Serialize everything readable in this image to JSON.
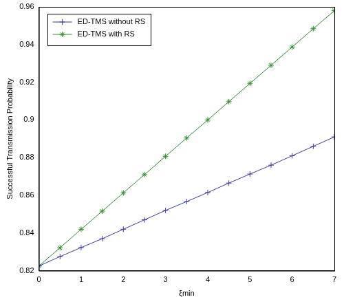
{
  "chart_data": {
    "type": "line",
    "x_label": "ξmin",
    "y_label": "Successful Transmission Probability",
    "x": [
      0,
      0.5,
      1,
      1.5,
      2,
      2.5,
      3,
      3.5,
      4,
      4.5,
      5,
      5.5,
      6,
      6.5,
      7
    ],
    "series": [
      {
        "name": "ED-TMS without RS",
        "color": "#3c3c9c",
        "marker": "plus",
        "values": [
          0.8225,
          0.8275,
          0.8323,
          0.837,
          0.842,
          0.847,
          0.852,
          0.8567,
          0.8615,
          0.8665,
          0.8713,
          0.876,
          0.881,
          0.886,
          0.891
        ]
      },
      {
        "name": "ED-TMS with RS",
        "color": "#2e8b2e",
        "marker": "star",
        "values": [
          0.8225,
          0.8322,
          0.842,
          0.8516,
          0.8613,
          0.871,
          0.8807,
          0.8904,
          0.9,
          0.9097,
          0.9194,
          0.929,
          0.9387,
          0.9484,
          0.958
        ]
      }
    ],
    "xlim": [
      0,
      7
    ],
    "xticks": [
      0,
      1,
      2,
      3,
      4,
      5,
      6,
      7
    ],
    "ylim": [
      0.82,
      0.96
    ],
    "yticks": [
      0.82,
      0.84,
      0.86,
      0.88,
      0.9,
      0.92,
      0.94,
      0.96
    ],
    "grid": false,
    "legend": "upper left"
  }
}
